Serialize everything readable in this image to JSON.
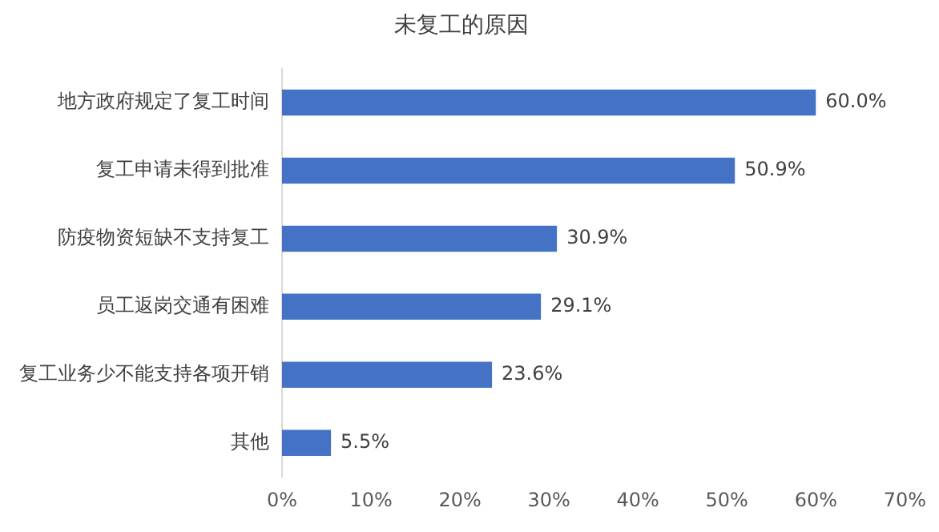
{
  "chart_data": {
    "type": "bar",
    "orientation": "horizontal",
    "title": "未复工的原因",
    "categories": [
      "地方政府规定了复工时间",
      "复工申请未得到批准",
      "防疫物资短缺不支持复工",
      "员工返岗交通有困难",
      "复工业务少不能支持各项开销",
      "其他"
    ],
    "values": [
      60.0,
      50.9,
      30.9,
      29.1,
      23.6,
      5.5
    ],
    "value_labels": [
      "60.0%",
      "50.9%",
      "30.9%",
      "29.1%",
      "23.6%",
      "5.5%"
    ],
    "color": "#4472c4",
    "xlim": [
      0,
      70
    ],
    "xticks": [
      {
        "value": 0,
        "label": "0%"
      },
      {
        "value": 10,
        "label": "10%"
      },
      {
        "value": 20,
        "label": "20%"
      },
      {
        "value": 30,
        "label": "30%"
      },
      {
        "value": 40,
        "label": "40%"
      },
      {
        "value": 50,
        "label": "50%"
      },
      {
        "value": 60,
        "label": "60%"
      },
      {
        "value": 70,
        "label": "70%"
      }
    ],
    "grid": false,
    "legend": false
  }
}
